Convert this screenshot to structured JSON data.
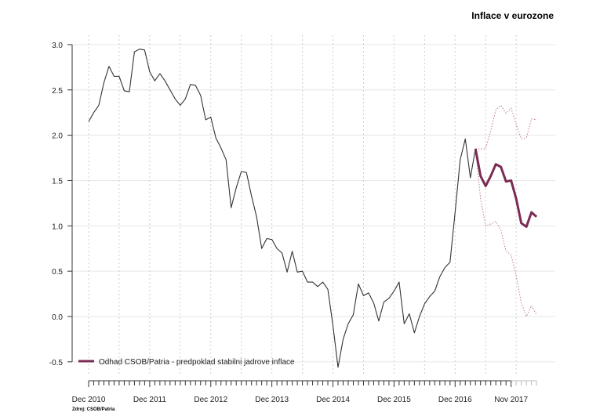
{
  "chart_data": {
    "type": "line",
    "title": "Inflace v eurozone",
    "source": "Zdroj: CSOB/Patria",
    "xlabel": "",
    "ylabel": "",
    "ylim": [
      -0.5,
      3.0
    ],
    "yticks": [
      "3.0",
      "2.5",
      "2.0",
      "1.5",
      "1.0",
      "0.5",
      "0.0",
      "-0.5"
    ],
    "ytick_values": [
      3.0,
      2.5,
      2.0,
      1.5,
      1.0,
      0.5,
      0.0,
      -0.5
    ],
    "x_start": "Dec 2010",
    "x_months_total": 88,
    "xtick_labels": [
      {
        "label": "Dec 2010",
        "month": 0
      },
      {
        "label": "Dec 2011",
        "month": 12
      },
      {
        "label": "Dec 2012",
        "month": 24
      },
      {
        "label": "Dec 2013",
        "month": 36
      },
      {
        "label": "Dec 2014",
        "month": 48
      },
      {
        "label": "Dec 2015",
        "month": 60
      },
      {
        "label": "Dec 2016",
        "month": 72
      },
      {
        "label": "Nov 2017",
        "month": 83
      }
    ],
    "legend": {
      "label": "Odhad CSOB/Patria - predpoklad stabilni jadrove inflace",
      "placement": "bottom-left"
    },
    "series": [
      {
        "name": "actual",
        "start_month": 0,
        "color": "#333333",
        "values": [
          2.15,
          2.25,
          2.33,
          2.58,
          2.76,
          2.65,
          2.65,
          2.49,
          2.48,
          2.92,
          2.95,
          2.94,
          2.7,
          2.6,
          2.68,
          2.6,
          2.5,
          2.4,
          2.33,
          2.4,
          2.56,
          2.55,
          2.44,
          2.17,
          2.2,
          1.97,
          1.86,
          1.73,
          1.2,
          1.42,
          1.6,
          1.59,
          1.33,
          1.1,
          0.75,
          0.86,
          0.85,
          0.75,
          0.7,
          0.49,
          0.72,
          0.49,
          0.5,
          0.38,
          0.38,
          0.33,
          0.38,
          0.3,
          -0.1,
          -0.56,
          -0.25,
          -0.08,
          0.02,
          0.36,
          0.23,
          0.26,
          0.15,
          -0.05,
          0.16,
          0.2,
          0.28,
          0.38,
          -0.08,
          0.03,
          -0.18,
          0.0,
          0.14,
          0.22,
          0.28,
          0.44,
          0.54,
          0.6,
          1.15,
          1.73,
          1.96,
          1.53,
          1.85
        ]
      },
      {
        "name": "Odhad CSOB/Patria - predpoklad stabilni jadrove inflace",
        "start_month": 76,
        "color": "#7b2c54",
        "values": [
          1.85,
          1.55,
          1.44,
          1.55,
          1.68,
          1.65,
          1.49,
          1.5,
          1.3,
          1.03,
          0.99,
          1.15,
          1.1
        ]
      },
      {
        "name": "upper band",
        "start_month": 76,
        "color": "#c0788f",
        "values": [
          1.85,
          1.85,
          1.85,
          2.05,
          2.28,
          2.33,
          2.24,
          2.3,
          2.12,
          1.96,
          1.97,
          2.18,
          2.17
        ]
      },
      {
        "name": "lower band",
        "start_month": 76,
        "color": "#c0788f",
        "values": [
          1.85,
          1.3,
          1.0,
          1.02,
          1.05,
          0.95,
          0.72,
          0.68,
          0.45,
          0.15,
          0.0,
          0.12,
          0.02
        ]
      }
    ]
  }
}
